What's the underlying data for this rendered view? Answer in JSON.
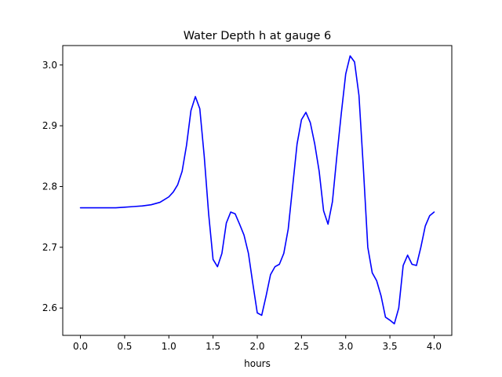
{
  "chart_data": {
    "type": "line",
    "title": "Water Depth h at gauge 6",
    "xlabel": "hours",
    "ylabel": "",
    "xlim": [
      -0.2,
      4.2
    ],
    "ylim": [
      2.555,
      3.032
    ],
    "xticks": [
      0.0,
      0.5,
      1.0,
      1.5,
      2.0,
      2.5,
      3.0,
      3.5,
      4.0
    ],
    "xtick_labels": [
      "0.0",
      "0.5",
      "1.0",
      "1.5",
      "2.0",
      "2.5",
      "3.0",
      "3.5",
      "4.0"
    ],
    "yticks": [
      2.6,
      2.7,
      2.8,
      2.9,
      3.0
    ],
    "ytick_labels": [
      "2.6",
      "2.7",
      "2.8",
      "2.9",
      "3.0"
    ],
    "grid": false,
    "legend": "none",
    "series": [
      {
        "color": "#0000ff",
        "points": [
          [
            0.0,
            2.765
          ],
          [
            0.2,
            2.765
          ],
          [
            0.4,
            2.765
          ],
          [
            0.5,
            2.766
          ],
          [
            0.6,
            2.767
          ],
          [
            0.7,
            2.768
          ],
          [
            0.8,
            2.77
          ],
          [
            0.9,
            2.774
          ],
          [
            1.0,
            2.783
          ],
          [
            1.05,
            2.791
          ],
          [
            1.1,
            2.803
          ],
          [
            1.15,
            2.825
          ],
          [
            1.2,
            2.868
          ],
          [
            1.25,
            2.925
          ],
          [
            1.3,
            2.948
          ],
          [
            1.35,
            2.928
          ],
          [
            1.4,
            2.85
          ],
          [
            1.45,
            2.755
          ],
          [
            1.5,
            2.68
          ],
          [
            1.55,
            2.668
          ],
          [
            1.6,
            2.69
          ],
          [
            1.65,
            2.74
          ],
          [
            1.7,
            2.758
          ],
          [
            1.75,
            2.755
          ],
          [
            1.8,
            2.738
          ],
          [
            1.85,
            2.72
          ],
          [
            1.9,
            2.69
          ],
          [
            1.95,
            2.64
          ],
          [
            2.0,
            2.592
          ],
          [
            2.05,
            2.588
          ],
          [
            2.1,
            2.62
          ],
          [
            2.15,
            2.655
          ],
          [
            2.2,
            2.668
          ],
          [
            2.25,
            2.672
          ],
          [
            2.3,
            2.69
          ],
          [
            2.35,
            2.73
          ],
          [
            2.4,
            2.8
          ],
          [
            2.45,
            2.87
          ],
          [
            2.5,
            2.91
          ],
          [
            2.55,
            2.922
          ],
          [
            2.6,
            2.905
          ],
          [
            2.65,
            2.87
          ],
          [
            2.7,
            2.825
          ],
          [
            2.75,
            2.76
          ],
          [
            2.8,
            2.738
          ],
          [
            2.85,
            2.775
          ],
          [
            2.9,
            2.85
          ],
          [
            2.95,
            2.92
          ],
          [
            3.0,
            2.985
          ],
          [
            3.05,
            3.015
          ],
          [
            3.1,
            3.005
          ],
          [
            3.15,
            2.95
          ],
          [
            3.2,
            2.83
          ],
          [
            3.25,
            2.7
          ],
          [
            3.3,
            2.658
          ],
          [
            3.35,
            2.645
          ],
          [
            3.4,
            2.62
          ],
          [
            3.45,
            2.585
          ],
          [
            3.5,
            2.58
          ],
          [
            3.55,
            2.574
          ],
          [
            3.6,
            2.6
          ],
          [
            3.65,
            2.67
          ],
          [
            3.7,
            2.687
          ],
          [
            3.75,
            2.672
          ],
          [
            3.8,
            2.67
          ],
          [
            3.85,
            2.7
          ],
          [
            3.9,
            2.735
          ],
          [
            3.95,
            2.752
          ],
          [
            4.0,
            2.758
          ]
        ]
      }
    ]
  }
}
